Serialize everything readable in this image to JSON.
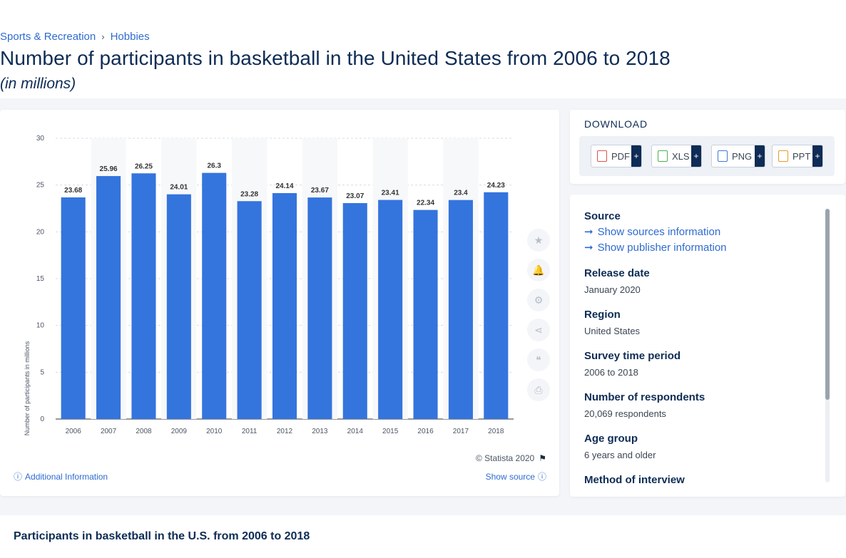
{
  "breadcrumb": {
    "category": "Sports & Recreation",
    "subcategory": "Hobbies"
  },
  "title": "Number of participants in basketball in the United States from 2006 to 2018",
  "subtitle": "(in millions)",
  "chart_data": {
    "type": "bar",
    "categories": [
      "2006",
      "2007",
      "2008",
      "2009",
      "2010",
      "2011",
      "2012",
      "2013",
      "2014",
      "2015",
      "2016",
      "2017",
      "2018"
    ],
    "values": [
      23.68,
      25.96,
      26.25,
      24.01,
      26.3,
      23.28,
      24.14,
      23.67,
      23.07,
      23.41,
      22.34,
      23.4,
      24.23
    ],
    "value_labels": [
      "23.68",
      "25.96",
      "26.25",
      "24.01",
      "26.3",
      "23.28",
      "24.14",
      "23.67",
      "23.07",
      "23.41",
      "22.34",
      "23.4",
      "24.23"
    ],
    "ylabel": "Number of participants in millions",
    "ylim": [
      0,
      30
    ],
    "yticks": [
      "0",
      "5",
      "10",
      "15",
      "20",
      "25",
      "30"
    ],
    "grid": true,
    "bar_color": "#3474dd"
  },
  "chart_footer": {
    "copyright": "© Statista 2020",
    "additional_info": "Additional Information",
    "show_source": "Show source"
  },
  "download": {
    "title": "DOWNLOAD",
    "formats": [
      "PDF",
      "XLS",
      "PNG",
      "PPT"
    ],
    "plus": "+"
  },
  "source_panel": {
    "source_label": "Source",
    "show_sources": "Show sources information",
    "show_publisher": "Show publisher information",
    "release_label": "Release date",
    "release_value": "January 2020",
    "region_label": "Region",
    "region_value": "United States",
    "period_label": "Survey time period",
    "period_value": "2006 to 2018",
    "respondents_label": "Number of respondents",
    "respondents_value": "20,069 respondents",
    "age_label": "Age group",
    "age_value": "6 years and older",
    "method_label": "Method of interview"
  },
  "bottom_title": "Participants in basketball in the U.S. from 2006 to 2018"
}
